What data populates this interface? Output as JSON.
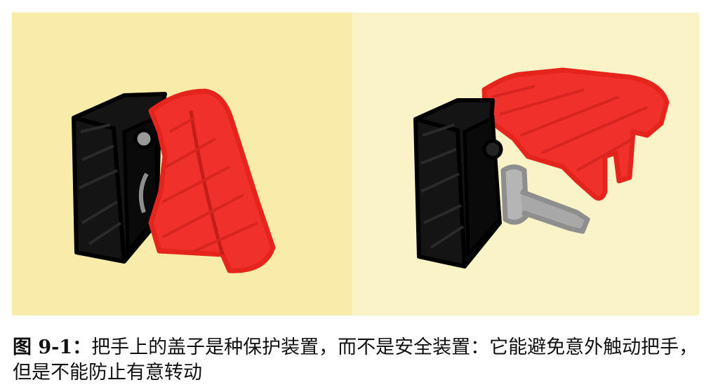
{
  "figure": {
    "colors": {
      "left_background": "#f9ecab",
      "right_background": "#fbf3c8",
      "housing": "#000000",
      "cover": "#f0302a",
      "handle": "#8e8e8e"
    },
    "panels": [
      {
        "id": "cover-closed",
        "shows": [
          "switch-housing",
          "protective-cover-closed",
          "knob"
        ]
      },
      {
        "id": "cover-open",
        "shows": [
          "switch-housing",
          "protective-cover-lifted",
          "handle-lever"
        ]
      }
    ]
  },
  "caption": {
    "label": "图 9-1：",
    "text": "把手上的盖子是种保护装置，而不是安全装置：它能避免意外触动把手，但是不能防止有意转动"
  }
}
